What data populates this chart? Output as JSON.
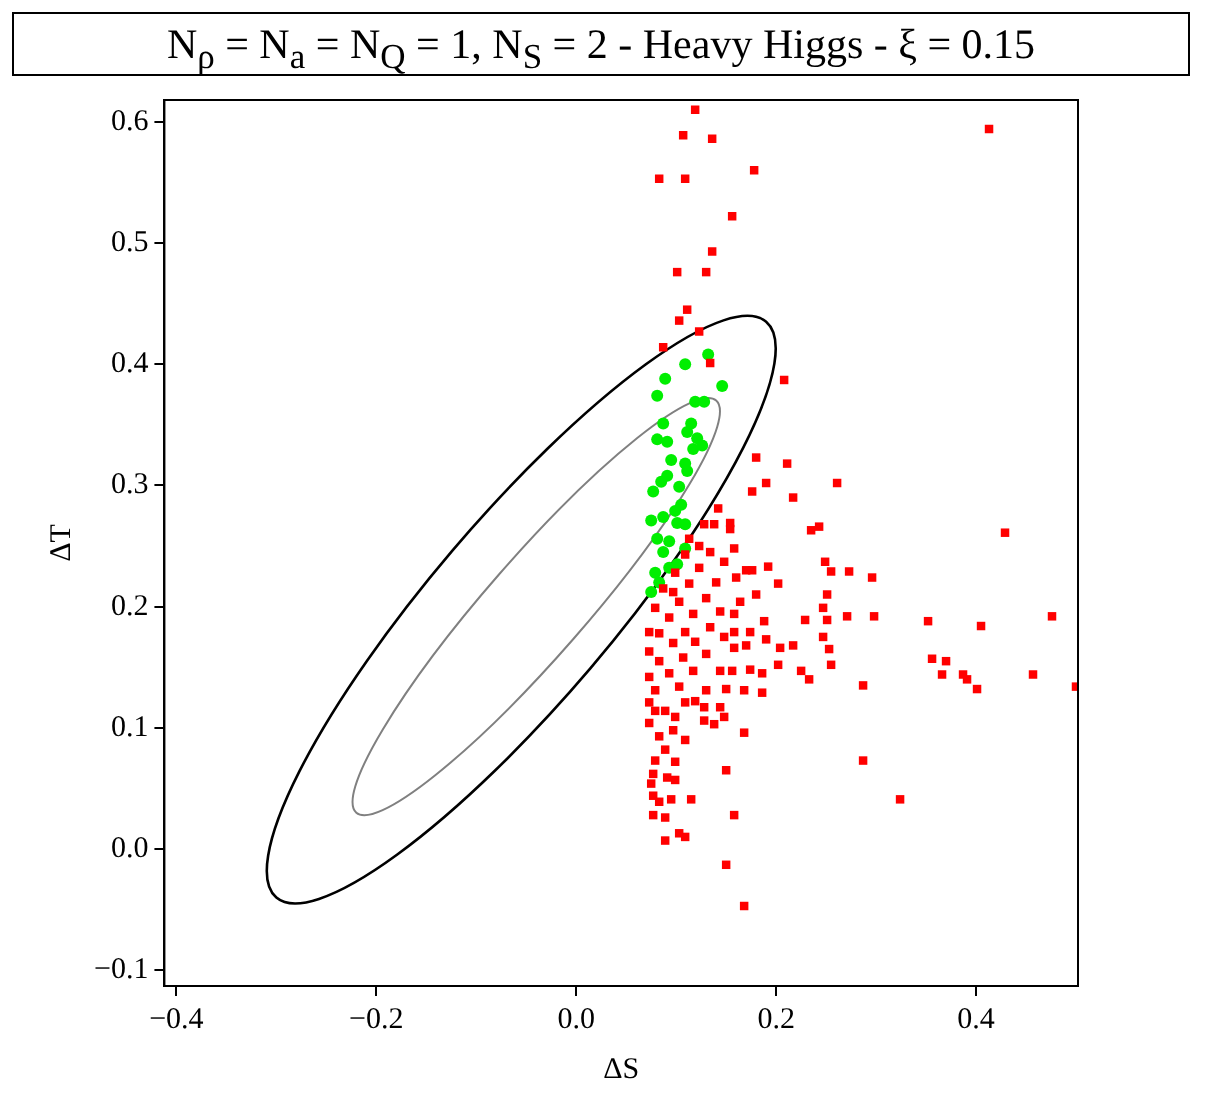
{
  "chart_data": {
    "type": "scatter",
    "title": "N$_{ρ}$ = N$_{a}$ = N$_{Q}$ = 1, N$_{S}$ = 2 - Heavy Higgs - ξ = 0.15",
    "xlabel": "ΔS",
    "ylabel": "ΔT",
    "xlim": [
      -0.412,
      0.502
    ],
    "ylim": [
      -0.113,
      0.618
    ],
    "xticks": [
      {
        "value": -0.4,
        "label": "−0.4"
      },
      {
        "value": -0.2,
        "label": "−0.2"
      },
      {
        "value": 0,
        "label": "0.0"
      },
      {
        "value": 0.2,
        "label": "0.2"
      },
      {
        "value": 0.4,
        "label": "0.4"
      }
    ],
    "yticks": [
      {
        "value": -0.1,
        "label": "−0.1"
      },
      {
        "value": 0,
        "label": "0.0"
      },
      {
        "value": 0.1,
        "label": "0.1"
      },
      {
        "value": 0.2,
        "label": "0.2"
      },
      {
        "value": 0.3,
        "label": "0.3"
      },
      {
        "value": 0.4,
        "label": "0.4"
      },
      {
        "value": 0.5,
        "label": "0.5"
      },
      {
        "value": 0.6,
        "label": "0.6"
      }
    ],
    "grid": false,
    "legend": false,
    "series": [
      {
        "type": "scatter",
        "marker": "square",
        "color": "#ff0000",
        "x": [
          0.119,
          0.107,
          0.136,
          0.083,
          0.109,
          0.178,
          0.156,
          0.136,
          0.101,
          0.13,
          0.111,
          0.103,
          0.123,
          0.087,
          0.134,
          0.208,
          0.413,
          0.18,
          0.211,
          0.261,
          0.19,
          0.176,
          0.217,
          0.142,
          0.154,
          0.243,
          0.235,
          0.429,
          0.249,
          0.255,
          0.273,
          0.296,
          0.192,
          0.176,
          0.202,
          0.18,
          0.251,
          0.247,
          0.271,
          0.298,
          0.352,
          0.405,
          0.476,
          0.229,
          0.251,
          0.188,
          0.174,
          0.19,
          0.204,
          0.217,
          0.247,
          0.253,
          0.356,
          0.37,
          0.366,
          0.387,
          0.391,
          0.401,
          0.457,
          0.5,
          0.255,
          0.233,
          0.225,
          0.202,
          0.174,
          0.186,
          0.186,
          0.168,
          0.287,
          0.168,
          0.287,
          0.15,
          0.324,
          0.158,
          0.115,
          0.15,
          0.168,
          0.103,
          0.109,
          0.089,
          0.089,
          0.077,
          0.083,
          0.095,
          0.077,
          0.075,
          0.091,
          0.099,
          0.077,
          0.079,
          0.099,
          0.089,
          0.109,
          0.083,
          0.097,
          0.073,
          0.128,
          0.138,
          0.148,
          0.144,
          0.073,
          0.089,
          0.109,
          0.119,
          0.079,
          0.103,
          0.13,
          0.15,
          0.073,
          0.093,
          0.117,
          0.144,
          0.156,
          0.083,
          0.107,
          0.13,
          0.073,
          0.097,
          0.119,
          0.148,
          0.158,
          0.17,
          0.083,
          0.109,
          0.134,
          0.158,
          0.073,
          0.093,
          0.117,
          0.144,
          0.158,
          0.079,
          0.103,
          0.13,
          0.164,
          0.087,
          0.113,
          0.14,
          0.16,
          0.099,
          0.123,
          0.148,
          0.109,
          0.134,
          0.158,
          0.113,
          0.128,
          0.154,
          0.123,
          0.17,
          0.138,
          0.097,
          0.079,
          0.099,
          0.128
        ],
        "values": [
          0.61,
          0.589,
          0.586,
          0.553,
          0.553,
          0.56,
          0.522,
          0.493,
          0.476,
          0.476,
          0.445,
          0.436,
          0.427,
          0.414,
          0.401,
          0.387,
          0.594,
          0.323,
          0.318,
          0.302,
          0.302,
          0.295,
          0.29,
          0.281,
          0.269,
          0.266,
          0.263,
          0.261,
          0.237,
          0.229,
          0.229,
          0.224,
          0.233,
          0.23,
          0.219,
          0.21,
          0.21,
          0.199,
          0.192,
          0.192,
          0.188,
          0.184,
          0.192,
          0.189,
          0.189,
          0.188,
          0.179,
          0.173,
          0.166,
          0.168,
          0.175,
          0.165,
          0.157,
          0.155,
          0.144,
          0.144,
          0.14,
          0.132,
          0.144,
          0.134,
          0.152,
          0.14,
          0.147,
          0.152,
          0.148,
          0.145,
          0.129,
          0.131,
          0.135,
          0.096,
          0.073,
          0.065,
          0.041,
          0.028,
          0.041,
          -0.013,
          -0.047,
          0.013,
          0.01,
          0.007,
          0.026,
          0.028,
          0.039,
          0.041,
          0.044,
          0.054,
          0.059,
          0.057,
          0.062,
          0.073,
          0.072,
          0.082,
          0.09,
          0.093,
          0.098,
          0.104,
          0.106,
          0.103,
          0.109,
          0.117,
          0.121,
          0.114,
          0.121,
          0.122,
          0.131,
          0.134,
          0.131,
          0.132,
          0.142,
          0.145,
          0.147,
          0.147,
          0.147,
          0.155,
          0.158,
          0.161,
          0.163,
          0.17,
          0.171,
          0.175,
          0.166,
          0.168,
          0.178,
          0.179,
          0.183,
          0.179,
          0.179,
          0.191,
          0.194,
          0.196,
          0.194,
          0.199,
          0.204,
          0.207,
          0.204,
          0.215,
          0.219,
          0.22,
          0.224,
          0.228,
          0.232,
          0.237,
          0.243,
          0.245,
          0.248,
          0.256,
          0.268,
          0.264,
          0.25,
          0.23,
          0.268,
          0.212,
          0.114,
          0.109,
          0.117
        ]
      },
      {
        "type": "scatter",
        "marker": "circle",
        "color": "#00ee00",
        "x": [
          0.132,
          0.109,
          0.089,
          0.146,
          0.081,
          0.119,
          0.128,
          0.087,
          0.115,
          0.081,
          0.091,
          0.111,
          0.121,
          0.126,
          0.117,
          0.095,
          0.109,
          0.111,
          0.091,
          0.085,
          0.077,
          0.103,
          0.105,
          0.099,
          0.075,
          0.087,
          0.101,
          0.109,
          0.081,
          0.093,
          0.109,
          0.087,
          0.093,
          0.079,
          0.083,
          0.075,
          0.101
        ],
        "values": [
          0.408,
          0.4,
          0.388,
          0.382,
          0.374,
          0.369,
          0.369,
          0.351,
          0.351,
          0.338,
          0.336,
          0.344,
          0.339,
          0.333,
          0.33,
          0.321,
          0.318,
          0.312,
          0.308,
          0.303,
          0.295,
          0.299,
          0.284,
          0.279,
          0.271,
          0.274,
          0.269,
          0.268,
          0.256,
          0.254,
          0.248,
          0.245,
          0.232,
          0.228,
          0.22,
          0.212,
          0.235
        ]
      }
    ]
  }
}
